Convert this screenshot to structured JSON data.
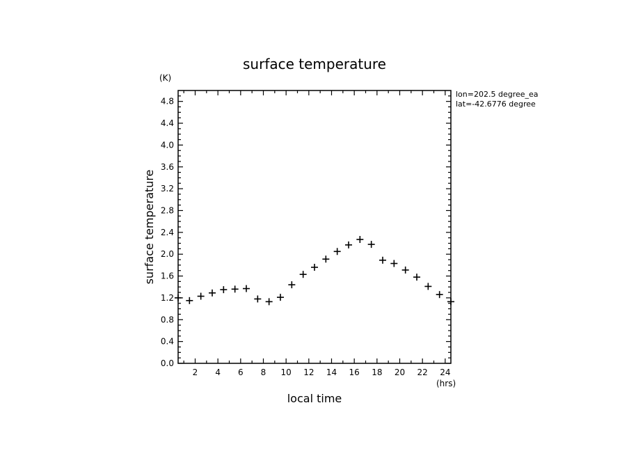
{
  "chart_data": {
    "type": "scatter",
    "title": "surface temperature",
    "xlabel": "local time",
    "ylabel": "surface temperature",
    "x_unit": "(hrs)",
    "y_unit": "(K)",
    "xlim": [
      0.5,
      24.5
    ],
    "ylim": [
      0.0,
      5.0
    ],
    "x_ticks": [
      2,
      4,
      6,
      8,
      10,
      12,
      14,
      16,
      18,
      20,
      22,
      24
    ],
    "y_ticks": [
      0.0,
      0.4,
      0.8,
      1.2,
      1.6,
      2.0,
      2.4,
      2.8,
      3.2,
      3.6,
      4.0,
      4.4,
      4.8
    ],
    "y_tick_labels": [
      "0.0",
      "0.4",
      "0.8",
      "1.2",
      "1.6",
      "2.0",
      "2.4",
      "2.8",
      "3.2",
      "3.6",
      "4.0",
      "4.4",
      "4.8"
    ],
    "annotations": [
      "lon=202.5 degree_ea",
      "lat=-42.6776 degree"
    ],
    "grid": false,
    "legend": "none",
    "series": [
      {
        "marker": "plus",
        "color": "#000000",
        "x": [
          0.5,
          1.5,
          2.5,
          3.5,
          4.5,
          5.5,
          6.5,
          7.5,
          8.5,
          9.5,
          10.5,
          11.5,
          12.5,
          13.5,
          14.5,
          15.5,
          16.5,
          17.5,
          18.5,
          19.5,
          20.5,
          21.5,
          22.5,
          23.5,
          24.5
        ],
        "y": [
          1.2,
          1.15,
          1.23,
          1.29,
          1.35,
          1.36,
          1.37,
          1.18,
          1.13,
          1.21,
          1.44,
          1.63,
          1.76,
          1.91,
          2.05,
          2.17,
          2.27,
          2.18,
          1.89,
          1.83,
          1.71,
          1.58,
          1.41,
          1.26,
          1.13
        ]
      }
    ]
  }
}
